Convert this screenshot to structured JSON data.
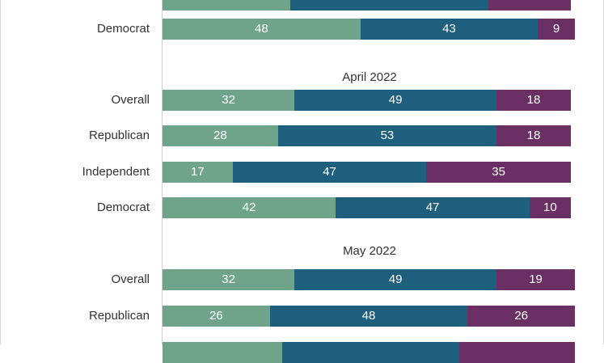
{
  "chart_data": {
    "type": "bar",
    "orientation": "horizontal",
    "stacked": true,
    "xlim": [
      0,
      100
    ],
    "colors": [
      "#6fa48a",
      "#1e5f7e",
      "#6a2f63"
    ],
    "groups": [
      {
        "title": "",
        "rows": [
          {
            "label": "",
            "values": [
              31,
              48,
              20
            ],
            "show_labels": false
          },
          {
            "label": "Democrat",
            "values": [
              48,
              43,
              9
            ],
            "show_labels": true
          }
        ]
      },
      {
        "title": "April 2022",
        "rows": [
          {
            "label": "Overall",
            "values": [
              32,
              49,
              18
            ],
            "show_labels": true
          },
          {
            "label": "Republican",
            "values": [
              28,
              53,
              18
            ],
            "show_labels": true
          },
          {
            "label": "Independent",
            "values": [
              17,
              47,
              35
            ],
            "show_labels": true
          },
          {
            "label": "Democrat",
            "values": [
              42,
              47,
              10
            ],
            "show_labels": true
          }
        ]
      },
      {
        "title": "May 2022",
        "rows": [
          {
            "label": "Overall",
            "values": [
              32,
              49,
              19
            ],
            "show_labels": true
          },
          {
            "label": "Republican",
            "values": [
              26,
              48,
              26
            ],
            "show_labels": true
          },
          {
            "label": "",
            "values": [
              29,
              43,
              28
            ],
            "show_labels": false
          }
        ]
      }
    ]
  }
}
